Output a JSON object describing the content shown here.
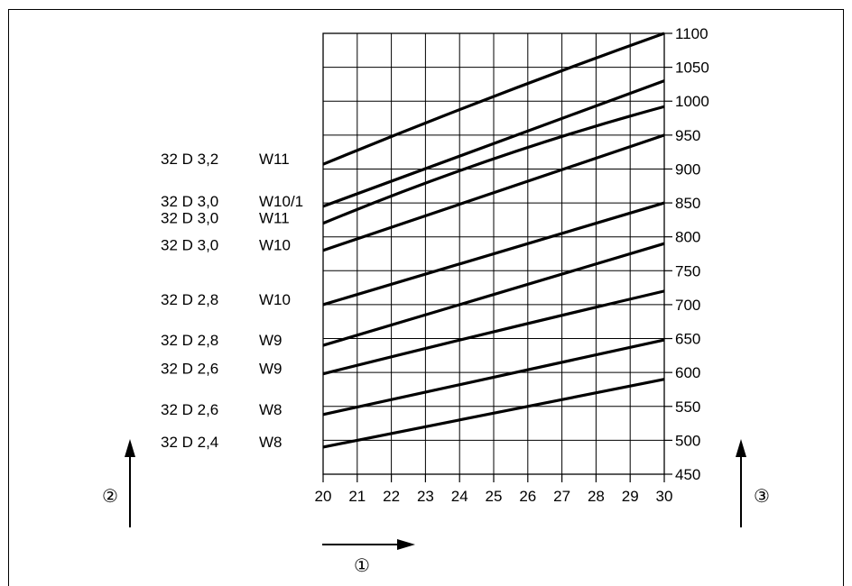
{
  "markers": {
    "x_axis": "①",
    "left_axis": "②",
    "right_axis": "③"
  },
  "chart_data": {
    "type": "line",
    "title": "",
    "xlabel": "①",
    "ylabel": "③",
    "x_ticks": [
      "20",
      "21",
      "22",
      "23",
      "24",
      "25",
      "26",
      "27",
      "28",
      "29",
      "30"
    ],
    "y_ticks": [
      "450",
      "500",
      "550",
      "600",
      "650",
      "700",
      "750",
      "800",
      "850",
      "900",
      "950",
      "1000",
      "1050",
      "1100"
    ],
    "xlim": [
      20,
      30
    ],
    "ylim": [
      450,
      1100
    ],
    "grid": true,
    "x": [
      20,
      25,
      30
    ],
    "series": [
      {
        "name": "32 D 3,2    W11",
        "values": [
          907,
          1007,
          1100
        ]
      },
      {
        "name": "32 D 3,0    W10/1",
        "values": [
          845,
          937,
          1030
        ]
      },
      {
        "name": "32 D 3,0    W11",
        "values": [
          820,
          915,
          992
        ]
      },
      {
        "name": "32 D 3,0    W10",
        "values": [
          780,
          865,
          950
        ]
      },
      {
        "name": "32 D 2,8    W10",
        "values": [
          700,
          775,
          850
        ]
      },
      {
        "name": "32 D 2,8    W9",
        "values": [
          640,
          715,
          790
        ]
      },
      {
        "name": "32 D 2,6    W9",
        "values": [
          598,
          660,
          720
        ]
      },
      {
        "name": "32 D 2,6    W8",
        "values": [
          538,
          593,
          648
        ]
      },
      {
        "name": "32 D 2,4    W8",
        "values": [
          490,
          540,
          590
        ]
      }
    ]
  }
}
